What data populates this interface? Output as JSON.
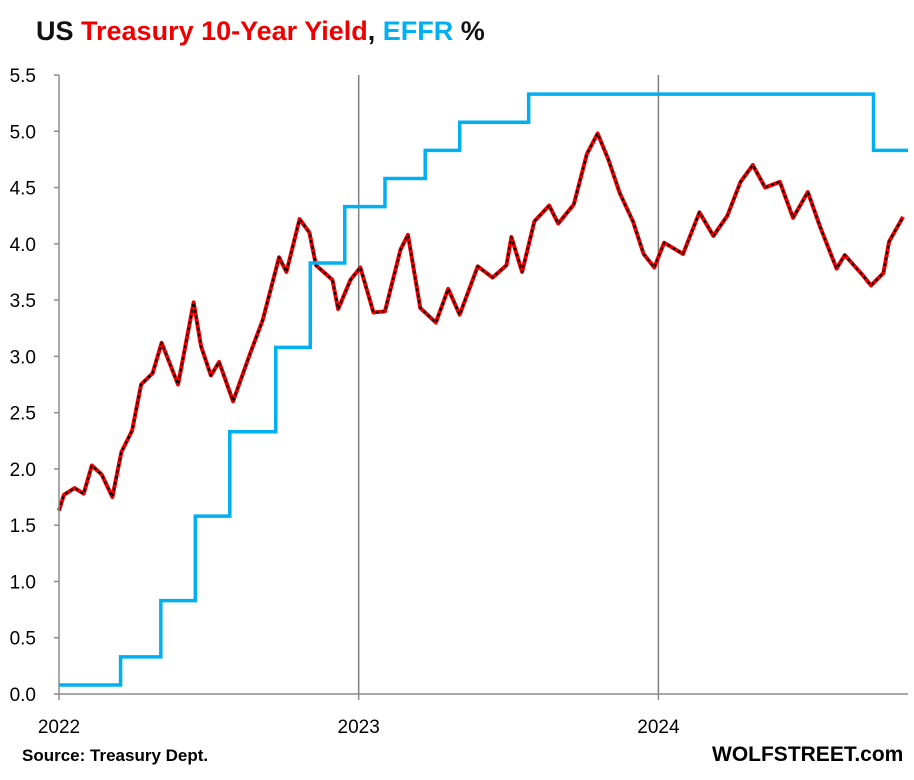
{
  "title": {
    "part1": "US ",
    "part2": "Treasury 10-Year Yield",
    "part3": ", ",
    "part4": "EFFR",
    "part5": " %",
    "color_dark": "#111111",
    "color_red": "#ee0000",
    "color_blue": "#00b0f0"
  },
  "footer": {
    "source": "Source: Treasury Dept.",
    "watermark": "WOLFSTREET.com"
  },
  "chart_data": {
    "type": "line",
    "title": "US Treasury 10-Year Yield, EFFR %",
    "xlabel": "",
    "ylabel": "",
    "ylim": [
      0,
      5.5
    ],
    "y_ticks": [
      "0.0",
      "0.5",
      "1.0",
      "1.5",
      "2.0",
      "2.5",
      "3.0",
      "3.5",
      "4.0",
      "4.5",
      "5.0",
      "5.5"
    ],
    "x_range": [
      "2022-01-01",
      "2024-10-31"
    ],
    "x_ticks": [
      {
        "date": "2022-01-01",
        "label": "2022"
      },
      {
        "date": "2023-01-01",
        "label": "2023"
      },
      {
        "date": "2024-01-01",
        "label": "2024"
      }
    ],
    "grid": "vertical lines at year boundaries",
    "legend": "none (series named by colored words in title)",
    "series": [
      {
        "name": "Treasury 10-Year Yield",
        "color": "#ee0000",
        "style": "red line with black dashed overlay",
        "points": [
          [
            "2022-01-01",
            1.63
          ],
          [
            "2022-01-07",
            1.77
          ],
          [
            "2022-01-20",
            1.83
          ],
          [
            "2022-01-31",
            1.78
          ],
          [
            "2022-02-10",
            2.03
          ],
          [
            "2022-02-22",
            1.95
          ],
          [
            "2022-03-07",
            1.75
          ],
          [
            "2022-03-18",
            2.15
          ],
          [
            "2022-03-31",
            2.34
          ],
          [
            "2022-04-11",
            2.75
          ],
          [
            "2022-04-25",
            2.85
          ],
          [
            "2022-05-06",
            3.12
          ],
          [
            "2022-05-26",
            2.75
          ],
          [
            "2022-06-14",
            3.48
          ],
          [
            "2022-06-23",
            3.09
          ],
          [
            "2022-07-05",
            2.83
          ],
          [
            "2022-07-15",
            2.95
          ],
          [
            "2022-08-01",
            2.6
          ],
          [
            "2022-08-22",
            3.03
          ],
          [
            "2022-09-06",
            3.32
          ],
          [
            "2022-09-26",
            3.88
          ],
          [
            "2022-10-05",
            3.75
          ],
          [
            "2022-10-21",
            4.22
          ],
          [
            "2022-11-02",
            4.1
          ],
          [
            "2022-11-10",
            3.81
          ],
          [
            "2022-11-30",
            3.68
          ],
          [
            "2022-12-07",
            3.42
          ],
          [
            "2022-12-22",
            3.68
          ],
          [
            "2023-01-03",
            3.79
          ],
          [
            "2023-01-19",
            3.39
          ],
          [
            "2023-02-02",
            3.4
          ],
          [
            "2023-02-21",
            3.95
          ],
          [
            "2023-03-02",
            4.08
          ],
          [
            "2023-03-17",
            3.43
          ],
          [
            "2023-04-05",
            3.3
          ],
          [
            "2023-04-20",
            3.6
          ],
          [
            "2023-05-04",
            3.37
          ],
          [
            "2023-05-26",
            3.8
          ],
          [
            "2023-06-13",
            3.7
          ],
          [
            "2023-06-30",
            3.81
          ],
          [
            "2023-07-06",
            4.06
          ],
          [
            "2023-07-19",
            3.75
          ],
          [
            "2023-08-03",
            4.2
          ],
          [
            "2023-08-21",
            4.34
          ],
          [
            "2023-09-01",
            4.18
          ],
          [
            "2023-09-20",
            4.35
          ],
          [
            "2023-10-06",
            4.8
          ],
          [
            "2023-10-19",
            4.98
          ],
          [
            "2023-11-01",
            4.75
          ],
          [
            "2023-11-15",
            4.45
          ],
          [
            "2023-12-01",
            4.2
          ],
          [
            "2023-12-14",
            3.91
          ],
          [
            "2023-12-27",
            3.79
          ],
          [
            "2024-01-08",
            4.01
          ],
          [
            "2024-01-31",
            3.91
          ],
          [
            "2024-02-20",
            4.28
          ],
          [
            "2024-03-08",
            4.07
          ],
          [
            "2024-03-25",
            4.25
          ],
          [
            "2024-04-10",
            4.55
          ],
          [
            "2024-04-25",
            4.7
          ],
          [
            "2024-05-10",
            4.5
          ],
          [
            "2024-05-28",
            4.55
          ],
          [
            "2024-06-13",
            4.23
          ],
          [
            "2024-07-01",
            4.46
          ],
          [
            "2024-07-16",
            4.15
          ],
          [
            "2024-08-05",
            3.78
          ],
          [
            "2024-08-15",
            3.9
          ],
          [
            "2024-09-06",
            3.72
          ],
          [
            "2024-09-16",
            3.63
          ],
          [
            "2024-10-01",
            3.74
          ],
          [
            "2024-10-08",
            4.02
          ],
          [
            "2024-10-25",
            4.24
          ]
        ]
      },
      {
        "name": "EFFR",
        "color": "#00b0f0",
        "style": "step line",
        "points": [
          [
            "2022-01-01",
            0.08
          ],
          [
            "2022-03-17",
            0.33
          ],
          [
            "2022-05-05",
            0.83
          ],
          [
            "2022-06-16",
            1.58
          ],
          [
            "2022-07-28",
            2.33
          ],
          [
            "2022-09-22",
            3.08
          ],
          [
            "2022-11-03",
            3.83
          ],
          [
            "2022-12-15",
            4.33
          ],
          [
            "2023-02-02",
            4.58
          ],
          [
            "2023-03-23",
            4.83
          ],
          [
            "2023-05-04",
            5.08
          ],
          [
            "2023-07-27",
            5.33
          ],
          [
            "2024-09-19",
            4.83
          ],
          [
            "2024-10-31",
            4.83
          ]
        ]
      }
    ]
  }
}
